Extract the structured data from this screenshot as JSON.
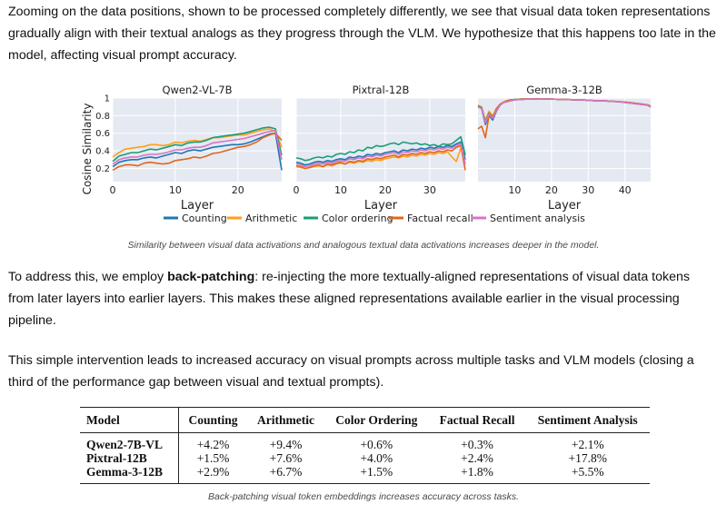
{
  "paragraphs": {
    "p1": "Zooming on the data positions, shown to be processed completely differently, we see that visual data token representations gradually align with their textual analogs as they progress through the VLM. We hypothesize that this happens too late in the model, affecting visual prompt accuracy.",
    "p2_before": "To address this, we employ ",
    "p2_bold": "back-patching",
    "p2_after": ": re-injecting the more textually-aligned representations of visual data tokens from later layers into earlier layers. This makes these aligned representations available earlier in the visual processing pipeline.",
    "p3": "This simple intervention leads to increased accuracy on visual prompts across multiple tasks and VLM models (closing a third of the performance gap between visual and textual prompts)."
  },
  "figure_caption": "Similarity between visual data activations and analogous textual data activations increases deeper in the model.",
  "table_caption": "Back-patching visual token embeddings increases accuracy across tasks.",
  "table": {
    "headers": [
      "Model",
      "Counting",
      "Arithmetic",
      "Color Ordering",
      "Factual Recall",
      "Sentiment Analysis"
    ],
    "rows": [
      [
        "Qwen2-7B-VL",
        "+4.2%",
        "+9.4%",
        "+0.6%",
        "+0.3%",
        "+2.1%"
      ],
      [
        "Pixtral-12B",
        "+1.5%",
        "+7.6%",
        "+4.0%",
        "+2.4%",
        "+17.8%"
      ],
      [
        "Gemma-3-12B",
        "+2.9%",
        "+6.7%",
        "+1.5%",
        "+1.8%",
        "+5.5%"
      ]
    ]
  },
  "chart_data": [
    {
      "type": "line",
      "title": "Qwen2-VL-7B",
      "xlabel": "Layer",
      "ylabel": "Cosine Similarity",
      "xlim": [
        0,
        27
      ],
      "ylim": [
        0.05,
        1.0
      ],
      "xticks": [
        0,
        10,
        20
      ],
      "yticks": [
        0.2,
        0.4,
        0.6,
        0.8,
        1
      ],
      "ytick_labels": [
        "0.2",
        "0.4",
        "0.6",
        "0.8",
        "1"
      ],
      "grid": true,
      "x": [
        0,
        1,
        2,
        3,
        4,
        5,
        6,
        7,
        8,
        9,
        10,
        11,
        12,
        13,
        14,
        15,
        16,
        17,
        18,
        19,
        20,
        21,
        22,
        23,
        24,
        25,
        26,
        27
      ],
      "series": [
        {
          "name": "Counting",
          "values": [
            0.22,
            0.27,
            0.29,
            0.3,
            0.3,
            0.32,
            0.33,
            0.32,
            0.34,
            0.36,
            0.38,
            0.37,
            0.4,
            0.41,
            0.4,
            0.42,
            0.44,
            0.45,
            0.46,
            0.47,
            0.47,
            0.48,
            0.5,
            0.53,
            0.56,
            0.59,
            0.6,
            0.18
          ]
        },
        {
          "name": "Arithmetic",
          "values": [
            0.33,
            0.38,
            0.42,
            0.43,
            0.44,
            0.45,
            0.47,
            0.47,
            0.46,
            0.47,
            0.5,
            0.49,
            0.51,
            0.52,
            0.51,
            0.53,
            0.55,
            0.55,
            0.56,
            0.57,
            0.58,
            0.58,
            0.6,
            0.62,
            0.64,
            0.65,
            0.62,
            0.44
          ]
        },
        {
          "name": "Color ordering",
          "values": [
            0.28,
            0.34,
            0.36,
            0.38,
            0.38,
            0.4,
            0.42,
            0.41,
            0.43,
            0.45,
            0.47,
            0.46,
            0.49,
            0.5,
            0.5,
            0.52,
            0.55,
            0.56,
            0.57,
            0.58,
            0.59,
            0.6,
            0.62,
            0.64,
            0.66,
            0.67,
            0.65,
            0.35
          ]
        },
        {
          "name": "Factual recall",
          "values": [
            0.18,
            0.22,
            0.24,
            0.24,
            0.23,
            0.26,
            0.27,
            0.26,
            0.25,
            0.26,
            0.29,
            0.3,
            0.31,
            0.33,
            0.32,
            0.34,
            0.37,
            0.38,
            0.4,
            0.42,
            0.44,
            0.45,
            0.47,
            0.5,
            0.55,
            0.58,
            0.6,
            0.52
          ]
        },
        {
          "name": "Sentiment analysis",
          "values": [
            0.25,
            0.3,
            0.32,
            0.33,
            0.33,
            0.35,
            0.36,
            0.36,
            0.37,
            0.39,
            0.41,
            0.41,
            0.43,
            0.44,
            0.44,
            0.46,
            0.49,
            0.5,
            0.51,
            0.52,
            0.53,
            0.54,
            0.56,
            0.58,
            0.6,
            0.62,
            0.63,
            0.3
          ]
        }
      ]
    },
    {
      "type": "line",
      "title": "Pixtral-12B",
      "xlabel": "Layer",
      "xlim": [
        0,
        38
      ],
      "ylim": [
        0.05,
        1.0
      ],
      "xticks": [
        0,
        10,
        20,
        30
      ],
      "grid": true,
      "x": [
        0,
        1,
        2,
        3,
        4,
        5,
        6,
        7,
        8,
        9,
        10,
        11,
        12,
        13,
        14,
        15,
        16,
        17,
        18,
        19,
        20,
        21,
        22,
        23,
        24,
        25,
        26,
        27,
        28,
        29,
        30,
        31,
        32,
        33,
        34,
        35,
        36,
        37,
        38
      ],
      "series": [
        {
          "name": "Counting",
          "values": [
            0.27,
            0.26,
            0.24,
            0.25,
            0.27,
            0.28,
            0.27,
            0.29,
            0.28,
            0.3,
            0.31,
            0.3,
            0.33,
            0.32,
            0.34,
            0.33,
            0.36,
            0.35,
            0.37,
            0.36,
            0.38,
            0.39,
            0.4,
            0.38,
            0.41,
            0.4,
            0.42,
            0.41,
            0.43,
            0.42,
            0.44,
            0.43,
            0.45,
            0.44,
            0.46,
            0.45,
            0.48,
            0.5,
            0.3
          ]
        },
        {
          "name": "Arithmetic",
          "values": [
            0.22,
            0.21,
            0.2,
            0.21,
            0.22,
            0.23,
            0.22,
            0.24,
            0.23,
            0.25,
            0.26,
            0.25,
            0.27,
            0.26,
            0.28,
            0.27,
            0.29,
            0.28,
            0.3,
            0.29,
            0.31,
            0.32,
            0.33,
            0.32,
            0.34,
            0.33,
            0.35,
            0.34,
            0.36,
            0.35,
            0.37,
            0.36,
            0.38,
            0.37,
            0.39,
            0.33,
            0.28,
            0.43,
            0.38
          ]
        },
        {
          "name": "Color ordering",
          "values": [
            0.32,
            0.31,
            0.29,
            0.3,
            0.32,
            0.33,
            0.32,
            0.34,
            0.33,
            0.36,
            0.37,
            0.36,
            0.39,
            0.38,
            0.41,
            0.4,
            0.44,
            0.43,
            0.46,
            0.45,
            0.46,
            0.48,
            0.49,
            0.47,
            0.5,
            0.49,
            0.48,
            0.49,
            0.47,
            0.48,
            0.46,
            0.47,
            0.45,
            0.48,
            0.47,
            0.48,
            0.52,
            0.56,
            0.35
          ]
        },
        {
          "name": "Factual recall",
          "values": [
            0.23,
            0.22,
            0.2,
            0.21,
            0.23,
            0.24,
            0.22,
            0.25,
            0.24,
            0.26,
            0.27,
            0.25,
            0.28,
            0.27,
            0.29,
            0.28,
            0.31,
            0.3,
            0.32,
            0.31,
            0.33,
            0.34,
            0.35,
            0.33,
            0.36,
            0.35,
            0.37,
            0.36,
            0.38,
            0.37,
            0.39,
            0.38,
            0.4,
            0.39,
            0.41,
            0.4,
            0.44,
            0.46,
            0.18
          ]
        },
        {
          "name": "Sentiment analysis",
          "values": [
            0.25,
            0.24,
            0.22,
            0.23,
            0.25,
            0.26,
            0.25,
            0.27,
            0.26,
            0.28,
            0.29,
            0.28,
            0.31,
            0.3,
            0.32,
            0.31,
            0.34,
            0.33,
            0.35,
            0.34,
            0.36,
            0.37,
            0.38,
            0.36,
            0.39,
            0.38,
            0.4,
            0.39,
            0.41,
            0.4,
            0.42,
            0.41,
            0.43,
            0.42,
            0.44,
            0.43,
            0.46,
            0.48,
            0.25
          ]
        }
      ]
    },
    {
      "type": "line",
      "title": "Gemma-3-12B",
      "xlabel": "Layer",
      "xlim": [
        0,
        47
      ],
      "ylim": [
        0.05,
        1.0
      ],
      "xticks": [
        10,
        20,
        30,
        40
      ],
      "grid": true,
      "x": [
        0,
        1,
        2,
        3,
        4,
        5,
        6,
        7,
        8,
        9,
        10,
        12,
        14,
        16,
        18,
        20,
        22,
        24,
        26,
        28,
        30,
        32,
        34,
        36,
        38,
        40,
        42,
        44,
        46,
        47
      ],
      "series": [
        {
          "name": "Counting",
          "values": [
            0.9,
            0.88,
            0.7,
            0.8,
            0.75,
            0.85,
            0.92,
            0.95,
            0.96,
            0.97,
            0.98,
            0.985,
            0.99,
            0.99,
            0.99,
            0.99,
            0.985,
            0.985,
            0.98,
            0.98,
            0.975,
            0.97,
            0.97,
            0.965,
            0.96,
            0.95,
            0.94,
            0.93,
            0.92,
            0.9
          ]
        },
        {
          "name": "Arithmetic",
          "values": [
            0.92,
            0.9,
            0.75,
            0.85,
            0.8,
            0.88,
            0.93,
            0.96,
            0.97,
            0.98,
            0.985,
            0.99,
            0.99,
            0.995,
            0.99,
            0.99,
            0.985,
            0.985,
            0.98,
            0.98,
            0.975,
            0.97,
            0.97,
            0.965,
            0.96,
            0.955,
            0.945,
            0.935,
            0.925,
            0.91
          ]
        },
        {
          "name": "Color ordering",
          "values": [
            0.91,
            0.89,
            0.73,
            0.83,
            0.78,
            0.87,
            0.93,
            0.95,
            0.97,
            0.98,
            0.985,
            0.99,
            0.99,
            0.99,
            0.99,
            0.99,
            0.985,
            0.985,
            0.98,
            0.98,
            0.975,
            0.97,
            0.97,
            0.965,
            0.96,
            0.955,
            0.945,
            0.935,
            0.92,
            0.9
          ]
        },
        {
          "name": "Factual recall",
          "values": [
            0.65,
            0.68,
            0.55,
            0.8,
            0.78,
            0.88,
            0.93,
            0.95,
            0.97,
            0.98,
            0.98,
            0.99,
            0.99,
            0.99,
            0.99,
            0.99,
            0.985,
            0.985,
            0.98,
            0.98,
            0.975,
            0.97,
            0.97,
            0.965,
            0.96,
            0.955,
            0.945,
            0.935,
            0.925,
            0.91
          ]
        },
        {
          "name": "Sentiment analysis",
          "values": [
            0.9,
            0.88,
            0.72,
            0.82,
            0.77,
            0.86,
            0.92,
            0.95,
            0.96,
            0.97,
            0.98,
            0.985,
            0.99,
            0.99,
            0.99,
            0.99,
            0.985,
            0.985,
            0.98,
            0.98,
            0.975,
            0.97,
            0.97,
            0.965,
            0.96,
            0.95,
            0.94,
            0.93,
            0.92,
            0.9
          ]
        }
      ]
    }
  ],
  "legend": [
    {
      "label": "Counting",
      "color": "#1f77b4"
    },
    {
      "label": "Arithmetic",
      "color": "#ff9f1a"
    },
    {
      "label": "Color ordering",
      "color": "#1a9e74"
    },
    {
      "label": "Factual recall",
      "color": "#e0661a"
    },
    {
      "label": "Sentiment analysis",
      "color": "#d775c4"
    }
  ],
  "colors": {
    "plot_bg": "#e5e9f2",
    "grid": "#ffffff"
  }
}
